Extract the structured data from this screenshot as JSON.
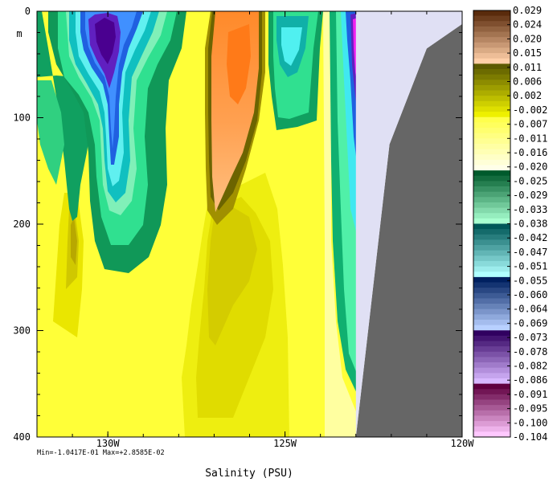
{
  "chart_data": {
    "type": "heatmap",
    "title": "",
    "xlabel": "Salinity (PSU)",
    "ylabel": "m",
    "xlim": [
      -132,
      -120
    ],
    "ylim": [
      400,
      0
    ],
    "x_ticks": [
      {
        "value": -130,
        "label": "130W"
      },
      {
        "value": -125,
        "label": "125W"
      },
      {
        "value": -120,
        "label": "120W"
      }
    ],
    "y_ticks": [
      {
        "value": 0,
        "label": "0"
      },
      {
        "value": 100,
        "label": "100"
      },
      {
        "value": 200,
        "label": "200"
      },
      {
        "value": 300,
        "label": "300"
      },
      {
        "value": 400,
        "label": "400"
      }
    ],
    "stats_text": "Min=-1.0417E-01  Max=+2.8585E-02",
    "min": -0.10417,
    "max": 0.028585,
    "colorbar": {
      "labels": [
        "0.029",
        "0.024",
        "0.020",
        "0.015",
        "0.011",
        "0.006",
        "0.002",
        "-0.002",
        "-0.007",
        "-0.011",
        "-0.016",
        "-0.020",
        "-0.025",
        "-0.029",
        "-0.033",
        "-0.038",
        "-0.042",
        "-0.047",
        "-0.051",
        "-0.055",
        "-0.060",
        "-0.064",
        "-0.069",
        "-0.073",
        "-0.078",
        "-0.082",
        "-0.086",
        "-0.091",
        "-0.095",
        "-0.100",
        "-0.104"
      ],
      "groups": [
        [
          "#5a2b0c",
          "#ffcfa8"
        ],
        [
          "#5c5a00",
          "#eef000"
        ],
        [
          "#ffff4d",
          "#ffffe8"
        ],
        [
          "#005a2c",
          "#a8ffd0"
        ],
        [
          "#005858",
          "#b0ffff"
        ],
        [
          "#002060",
          "#b8d0ff"
        ],
        [
          "#300060",
          "#d8b8ff"
        ],
        [
          "#600040",
          "#ffc8ff"
        ]
      ]
    },
    "regions": [
      {
        "name": "land",
        "color": "#666666",
        "polygon": [
          [
            -123,
            400
          ],
          [
            -122.05,
            125
          ],
          [
            -121,
            35
          ],
          [
            -120,
            12
          ],
          [
            -120,
            400
          ]
        ]
      },
      {
        "name": "missing",
        "color": "#e0e0f4",
        "polygon": [
          [
            -123,
            0
          ],
          [
            -120,
            0
          ],
          [
            -120,
            12
          ],
          [
            -121,
            35
          ],
          [
            -122.05,
            125
          ],
          [
            -123,
            400
          ]
        ]
      }
    ]
  }
}
